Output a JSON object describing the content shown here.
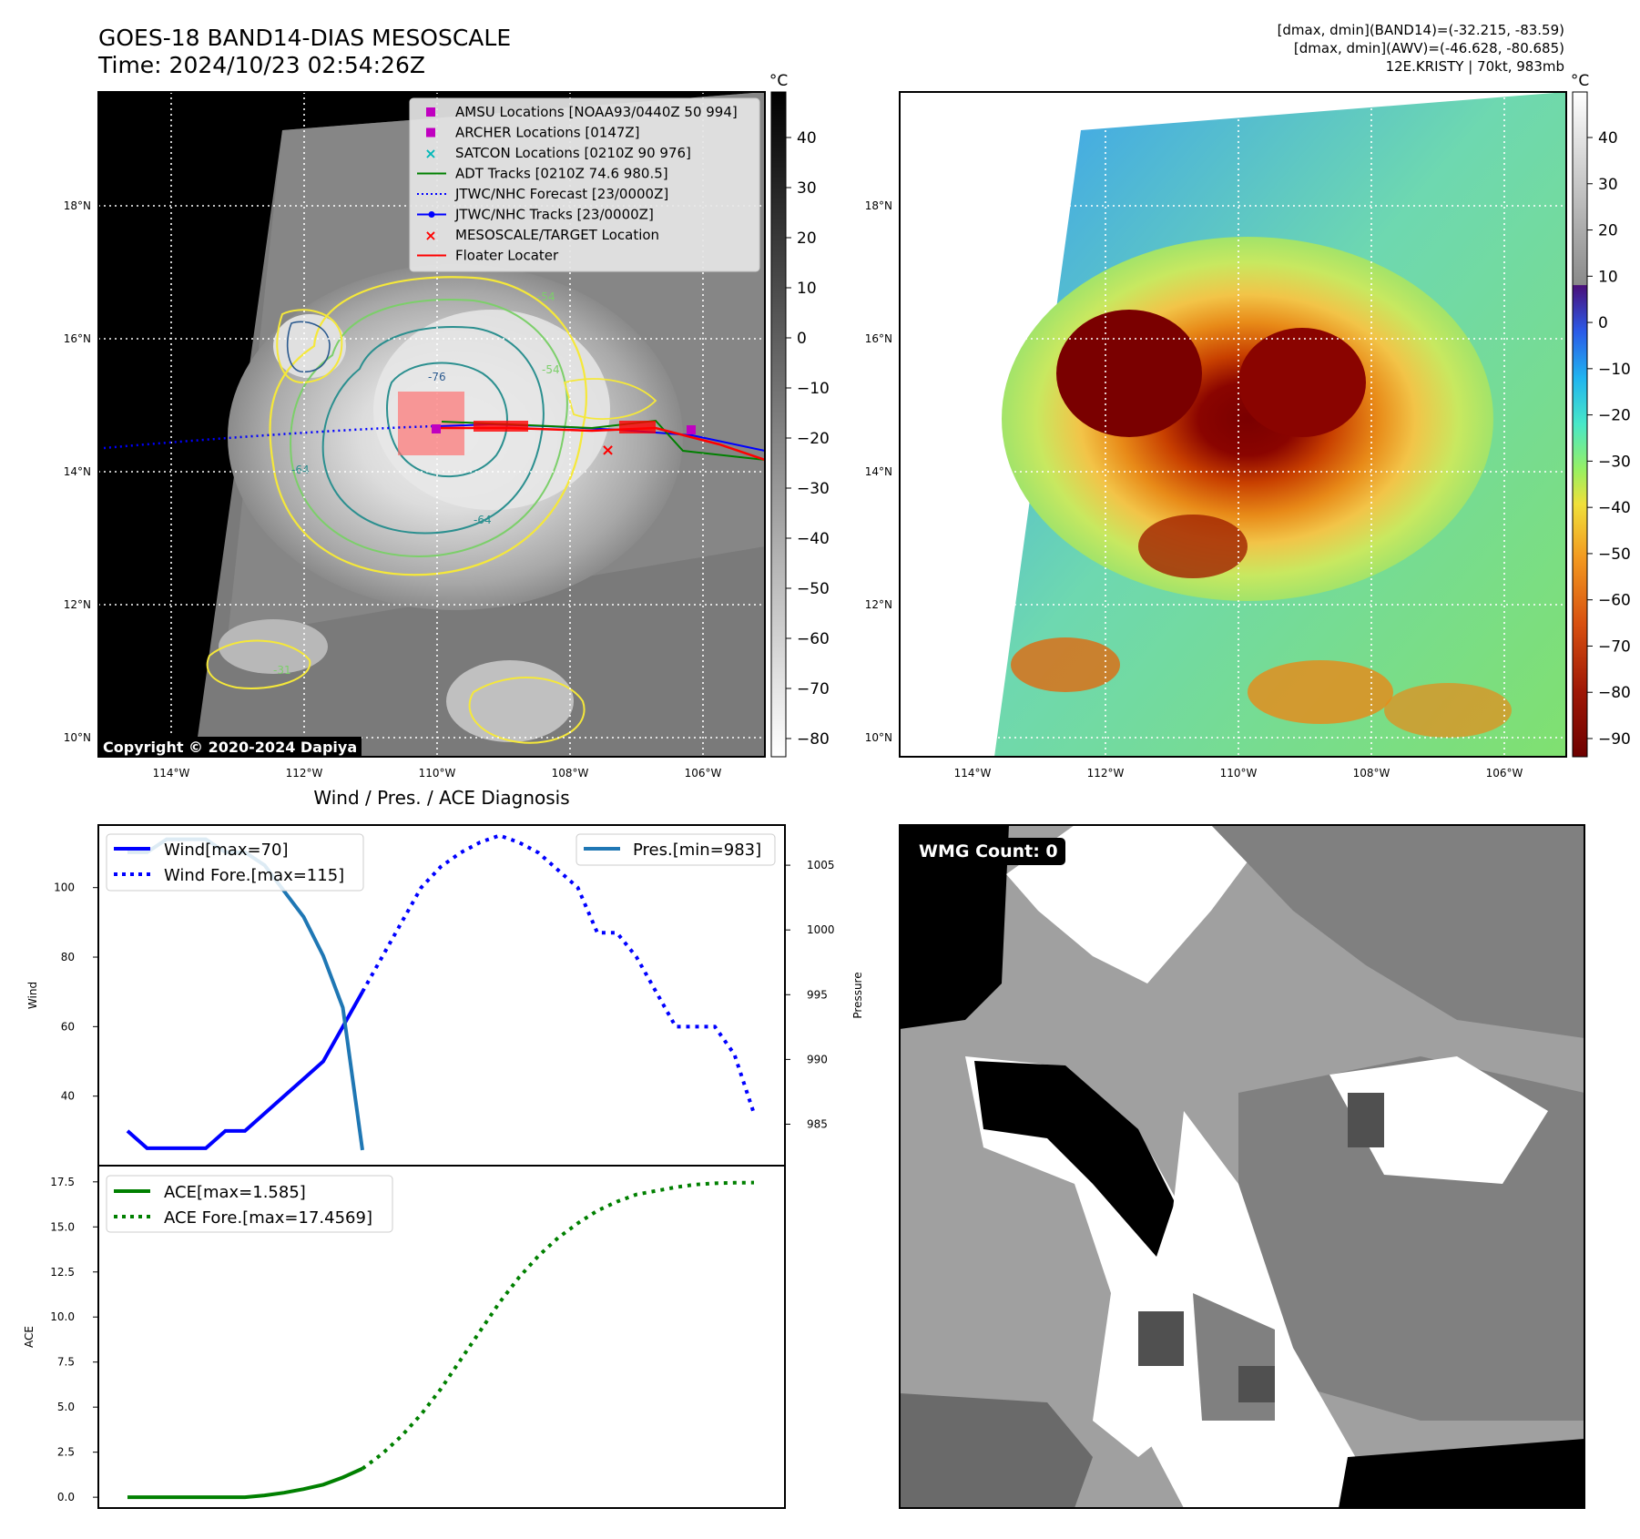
{
  "header": {
    "title_line1": "GOES-18 BAND14-DIAS MESOSCALE",
    "title_line2": "Time: 2024/10/23 02:54:26Z",
    "meta_line1": "[dmax, dmin](BAND14)=(-32.215, -83.59)",
    "meta_line2": "[dmax, dmin](AWV)=(-46.628, -80.685)",
    "meta_line3": "12E.KRISTY | 70kt, 983mb"
  },
  "map_panels": {
    "lon_ticks": [
      "114°W",
      "112°W",
      "110°W",
      "108°W",
      "106°W"
    ],
    "lat_ticks": [
      "18°N",
      "16°N",
      "14°N",
      "12°N",
      "10°N"
    ],
    "copyright": "Copyright © 2020-2024 Dapiya",
    "contour_labels": [
      "-76",
      "-64",
      "-54",
      "-54",
      "-64",
      "-31"
    ],
    "colorbar_left": {
      "unit": "°C",
      "ticks": [
        "40",
        "30",
        "20",
        "10",
        "0",
        "−10",
        "−20",
        "−30",
        "−40",
        "−50",
        "−60",
        "−70",
        "−80"
      ],
      "colormap": "gray_reversed"
    },
    "colorbar_right": {
      "unit": "°C",
      "ticks": [
        "40",
        "30",
        "20",
        "10",
        "0",
        "−10",
        "−20",
        "−30",
        "−40",
        "−50",
        "−60",
        "−70",
        "−80",
        "−90"
      ],
      "colormap": "turbo_below_0_gray_above"
    },
    "legend": [
      {
        "label": "AMSU Locations [NOAA93/0440Z 50 994]",
        "marker": "square",
        "color": "#c000c0"
      },
      {
        "label": "ARCHER Locations [0147Z]",
        "marker": "square",
        "color": "#c000c0"
      },
      {
        "label": "SATCON Locations [0210Z 90 976]",
        "marker": "x",
        "color": "#00b8b8"
      },
      {
        "label": "ADT Tracks [0210Z 74.6 980.5]",
        "marker": "line",
        "color": "#008000"
      },
      {
        "label": "JTWC/NHC Forecast [23/0000Z]",
        "marker": "dotted",
        "color": "#0000ff"
      },
      {
        "label": "JTWC/NHC Tracks [23/0000Z]",
        "marker": "line-dot",
        "color": "#0000ff"
      },
      {
        "label": "MESOSCALE/TARGET Location",
        "marker": "x",
        "color": "#ff0000"
      },
      {
        "label": "Floater Locater",
        "marker": "line",
        "color": "#ff0000"
      }
    ],
    "colors": {
      "bt_low": "#7a0000",
      "bt_mid": "#e87a10",
      "bt_cold_bg": "#7ee068",
      "sky": "#3aa0f0",
      "contour_yellow": "#f5e83a",
      "contour_teal": "#2b8f8f",
      "contour_green": "#7ccf6a"
    }
  },
  "diagnosis": {
    "title": "Wind / Pres. / ACE Diagnosis",
    "wind_ylabel": "Wind",
    "pres_ylabel": "Pressure",
    "ace_ylabel": "ACE",
    "wind_yticks": [
      "100",
      "80",
      "60",
      "40"
    ],
    "pres_yticks": [
      "1005",
      "1000",
      "995",
      "990",
      "985"
    ],
    "ace_yticks": [
      "17.5",
      "15.0",
      "12.5",
      "10.0",
      "7.5",
      "5.0",
      "2.5",
      "0.0"
    ],
    "legend_wind": "Wind[max=70]",
    "legend_wind_fore": "Wind Fore.[max=115]",
    "legend_pres": "Pres.[min=983]",
    "legend_ace": "ACE[max=1.585]",
    "legend_ace_fore": "ACE Fore.[max=17.4569]"
  },
  "wmg": {
    "label": "WMG Count: 0"
  },
  "chart_data": [
    {
      "type": "line",
      "title": "Wind / Pres. / ACE Diagnosis",
      "ylabel": "Wind",
      "ylim": [
        20,
        118
      ],
      "x": [
        0,
        1,
        2,
        3,
        4,
        5,
        6,
        7,
        8,
        9,
        10,
        11,
        12,
        13,
        14,
        15,
        16,
        17,
        18,
        19,
        20,
        21,
        22,
        23,
        24,
        25,
        26,
        27,
        28,
        29,
        30,
        31,
        32
      ],
      "series": [
        {
          "name": "Wind[max=70]",
          "x": [
            0,
            1,
            2,
            3,
            4,
            5,
            6,
            7,
            8,
            9,
            10,
            11,
            12
          ],
          "values": [
            30,
            25,
            25,
            25,
            25,
            30,
            30,
            35,
            40,
            45,
            50,
            60,
            70
          ],
          "style": "solid",
          "color": "#0000ff"
        },
        {
          "name": "Wind Fore.[max=115]",
          "x": [
            12,
            13,
            14,
            15,
            16,
            17,
            18,
            19,
            20,
            21,
            22,
            23,
            24,
            25,
            26,
            27,
            28,
            29,
            30,
            31,
            32
          ],
          "values": [
            70,
            80,
            90,
            100,
            106,
            110,
            113,
            115,
            113,
            110,
            105,
            100,
            87,
            87,
            80,
            70,
            60,
            60,
            60,
            52,
            35
          ],
          "style": "dotted",
          "color": "#0000ff"
        }
      ]
    },
    {
      "type": "line",
      "ylabel": "Pressure",
      "ylim": [
        981.8,
        1008.1
      ],
      "series": [
        {
          "name": "Pres.[min=983]",
          "x": [
            0,
            1,
            2,
            3,
            4,
            5,
            6,
            7,
            8,
            9,
            10,
            11,
            12
          ],
          "values": [
            1006,
            1006,
            1007,
            1007,
            1007,
            1006,
            1006,
            1005,
            1003,
            1001,
            998,
            994,
            983
          ],
          "style": "solid",
          "color": "#1f77b4"
        }
      ]
    },
    {
      "type": "line",
      "ylabel": "ACE",
      "ylim": [
        -0.6,
        18.4
      ],
      "series": [
        {
          "name": "ACE[max=1.585]",
          "x": [
            0,
            1,
            2,
            3,
            4,
            5,
            6,
            7,
            8,
            9,
            10,
            11,
            12
          ],
          "values": [
            0,
            0,
            0,
            0,
            0,
            0,
            0,
            0.1,
            0.25,
            0.45,
            0.7,
            1.1,
            1.585
          ],
          "style": "solid",
          "color": "#008000"
        },
        {
          "name": "ACE Fore.[max=17.4569]",
          "x": [
            12,
            13,
            14,
            15,
            16,
            17,
            18,
            19,
            20,
            21,
            22,
            23,
            24,
            25,
            26,
            27,
            28,
            29,
            30,
            31,
            32
          ],
          "values": [
            1.585,
            2.4,
            3.4,
            4.6,
            6.0,
            7.6,
            9.2,
            10.8,
            12.2,
            13.4,
            14.4,
            15.2,
            15.9,
            16.4,
            16.8,
            17.0,
            17.2,
            17.35,
            17.42,
            17.45,
            17.4569
          ],
          "style": "dotted",
          "color": "#008000"
        }
      ]
    }
  ]
}
